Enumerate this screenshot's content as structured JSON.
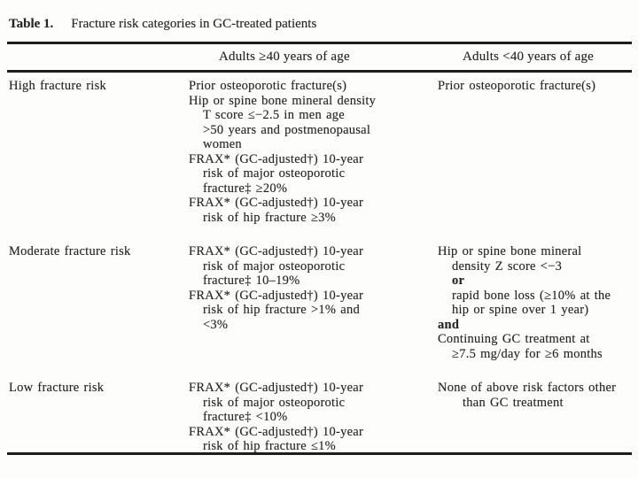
{
  "table": {
    "label": "Table 1.",
    "caption": "Fracture risk categories in GC-treated patients",
    "headers": {
      "col2": "Adults ≥40 years of age",
      "col3": "Adults <40 years of age"
    },
    "rows": [
      {
        "category": "High fracture risk",
        "adults_40_plus": [
          {
            "t": "Prior osteoporotic fracture(s)",
            "i": 0
          },
          {
            "t": "Hip or spine bone mineral density",
            "i": 0
          },
          {
            "t": "T score ≤−2.5 in men age",
            "i": 1
          },
          {
            "t": ">50 years and postmenopausal",
            "i": 1
          },
          {
            "t": "women",
            "i": 1
          },
          {
            "t": "FRAX* (GC-adjusted†) 10-year",
            "i": 0
          },
          {
            "t": "risk of major osteoporotic",
            "i": 1
          },
          {
            "t": "fracture‡ ≥20%",
            "i": 1
          },
          {
            "t": "FRAX* (GC-adjusted†) 10-year",
            "i": 0
          },
          {
            "t": "risk of hip fracture ≥3%",
            "i": 1
          }
        ],
        "adults_under_40": [
          {
            "t": "Prior osteoporotic fracture(s)",
            "i": 0
          }
        ]
      },
      {
        "category": "Moderate fracture risk",
        "adults_40_plus": [
          {
            "t": "FRAX* (GC-adjusted†) 10-year",
            "i": 0
          },
          {
            "t": "risk of major osteoporotic",
            "i": 1
          },
          {
            "t": "fracture‡ 10–19%",
            "i": 1
          },
          {
            "t": "FRAX* (GC-adjusted†) 10-year",
            "i": 0
          },
          {
            "t": "risk of hip fracture >1% and",
            "i": 1
          },
          {
            "t": "<3%",
            "i": 1
          }
        ],
        "adults_under_40": [
          {
            "t": "Hip or spine bone mineral",
            "i": 0
          },
          {
            "t": "density Z score <−3",
            "i": 1
          },
          {
            "t": "or",
            "i": 1,
            "b": true
          },
          {
            "t": "rapid bone loss (≥10% at the",
            "i": 1
          },
          {
            "t": "hip or spine over 1 year)",
            "i": 1
          },
          {
            "t": "and",
            "i": 0,
            "b": true
          },
          {
            "t": "Continuing GC treatment at",
            "i": 0
          },
          {
            "t": "≥7.5 mg/day for ≥6 months",
            "i": 1
          }
        ]
      },
      {
        "category": "Low fracture risk",
        "adults_40_plus": [
          {
            "t": "FRAX* (GC-adjusted†) 10-year",
            "i": 0
          },
          {
            "t": "risk of major osteoporotic",
            "i": 1
          },
          {
            "t": "fracture‡ <10%",
            "i": 1
          },
          {
            "t": "FRAX* (GC-adjusted†) 10-year",
            "i": 0
          },
          {
            "t": "risk of hip fracture ≤1%",
            "i": 1
          }
        ],
        "adults_under_40": [
          {
            "t": "None of above risk factors other",
            "i": 0
          },
          {
            "t": "than GC treatment",
            "i": 2
          }
        ]
      }
    ]
  }
}
